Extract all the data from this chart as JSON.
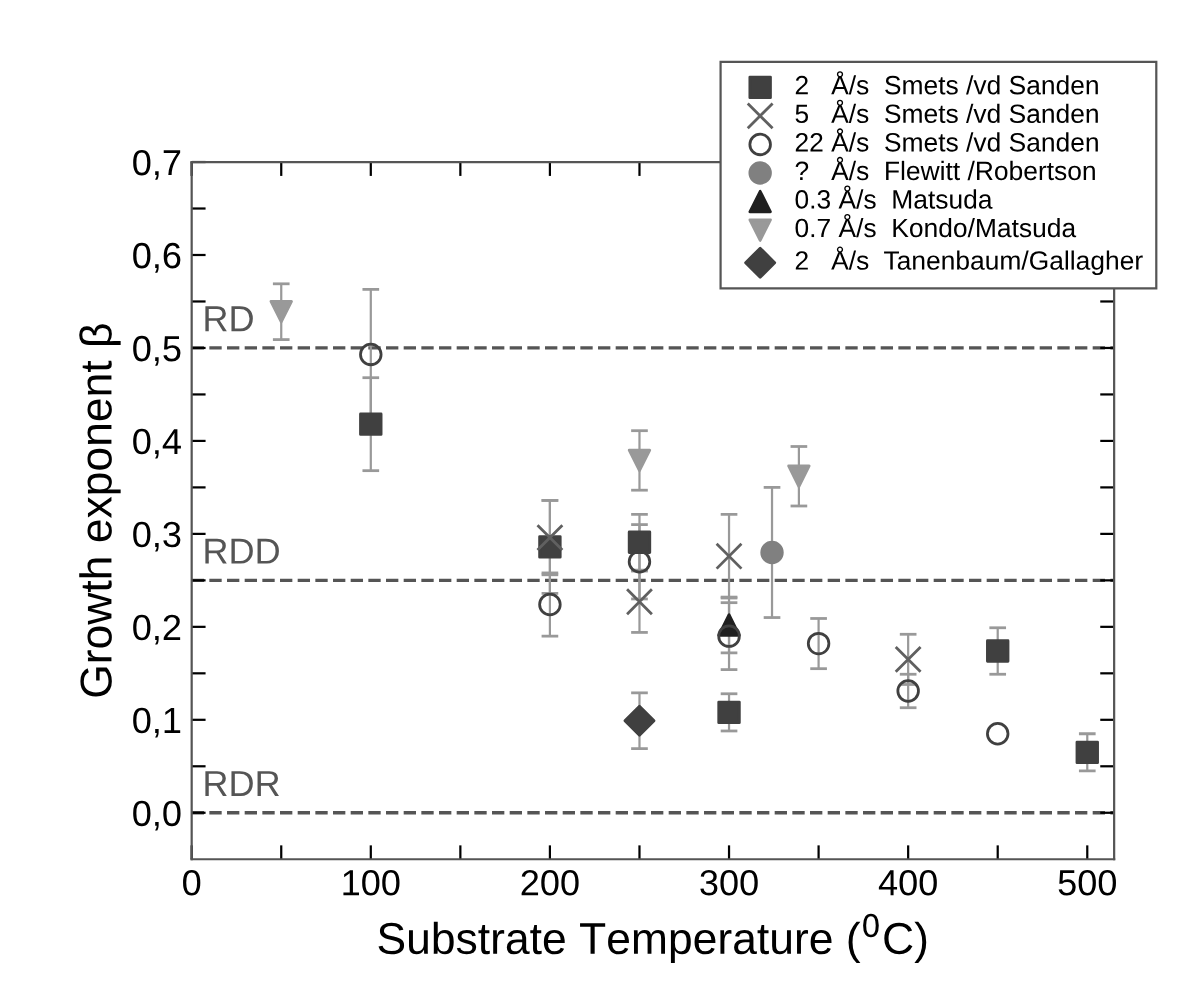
{
  "chart_data": {
    "type": "scatter",
    "xlabel": "Substrate Temperature ($^{0}$C)",
    "ylabel": "Growth exponent β",
    "xlim": [
      0,
      515
    ],
    "ylim": [
      -0.05,
      0.7
    ],
    "xticks": [
      0,
      {
        "value": 50,
        "label": null
      },
      100,
      {
        "value": 150,
        "label": null
      },
      200,
      {
        "value": 250,
        "label": null
      },
      300,
      {
        "value": 350,
        "label": null
      },
      400,
      {
        "value": 450,
        "label": null
      },
      500
    ],
    "yticks": [
      {
        "value": 0.0,
        "label": "0,0"
      },
      {
        "value": 0.05,
        "label": null
      },
      {
        "value": 0.1,
        "label": "0,1"
      },
      {
        "value": 0.15,
        "label": null
      },
      {
        "value": 0.2,
        "label": "0,2"
      },
      {
        "value": 0.25,
        "label": null
      },
      {
        "value": 0.3,
        "label": "0,3"
      },
      {
        "value": 0.35,
        "label": null
      },
      {
        "value": 0.4,
        "label": "0,4"
      },
      {
        "value": 0.45,
        "label": null
      },
      {
        "value": 0.5,
        "label": "0,5"
      },
      {
        "value": 0.55,
        "label": null
      },
      {
        "value": 0.6,
        "label": "0,6"
      },
      {
        "value": 0.65,
        "label": null
      },
      {
        "value": 0.7,
        "label": "0,7"
      }
    ],
    "grid": false,
    "legend": "top right",
    "series": [
      {
        "name": "2   Å/s  Smets /vd Sanden",
        "color": "#404040",
        "marker": "square",
        "x": [
          100,
          200,
          250,
          300,
          450,
          500
        ],
        "values": [
          0.418,
          0.286,
          0.291,
          0.108,
          0.174,
          0.065
        ],
        "errors": [
          0.05,
          0.05,
          0.03,
          0.02,
          0.025,
          0.02
        ]
      },
      {
        "name": "5   Å/s  Smets /vd Sanden",
        "color": "#606060",
        "marker": "cross",
        "x": [
          200,
          250,
          300,
          400
        ],
        "values": [
          0.296,
          0.227,
          0.276,
          0.165
        ],
        "errors": [
          0.04,
          0.033,
          0.045,
          0.027
        ]
      },
      {
        "name": "22 Å/s  Smets /vd Sanden",
        "color": "#404040",
        "marker": "open_circle",
        "x": [
          100,
          200,
          250,
          300,
          350,
          400,
          450
        ],
        "values": [
          0.493,
          0.224,
          0.27,
          0.19,
          0.182,
          0.131,
          0.085
        ],
        "errors": [
          0.07,
          0.034,
          0.04,
          0.036,
          0.027,
          0.018,
          null
        ]
      },
      {
        "name": "?   Å/s  Flewitt /Robertson",
        "color": "#808080",
        "marker": "circle",
        "x": [
          324
        ],
        "values": [
          0.28
        ],
        "errors": [
          0.07
        ]
      },
      {
        "name": "0.3 Å/s  Matsuda",
        "color": "#202020",
        "marker": "triangle",
        "x": [
          300
        ],
        "values": [
          0.202
        ],
        "errors": [
          0.03
        ]
      },
      {
        "name": "0.7 Å/s  Kondo/Matsuda",
        "color": "#999999",
        "marker": "triangle_down",
        "x": [
          50,
          250,
          339
        ],
        "values": [
          0.539,
          0.379,
          0.362
        ],
        "errors": [
          0.03,
          0.032,
          0.032
        ]
      },
      {
        "name": "2   Å/s  Tanenbaum/Gallagher",
        "color": "#404040",
        "marker": "diamond",
        "x": [
          250
        ],
        "values": [
          0.099
        ],
        "errors": [
          0.03
        ]
      }
    ],
    "ref_lines": [
      {
        "axis": "y",
        "value": 0.5,
        "label": "RD",
        "color": "#555555",
        "line_style": "dashed"
      },
      {
        "axis": "y",
        "value": 0.25,
        "label": "RDD",
        "color": "#555555",
        "line_style": "dashed"
      },
      {
        "axis": "y",
        "value": 0.0,
        "label": "RDR",
        "color": "#555555",
        "line_style": "dashed"
      }
    ]
  }
}
